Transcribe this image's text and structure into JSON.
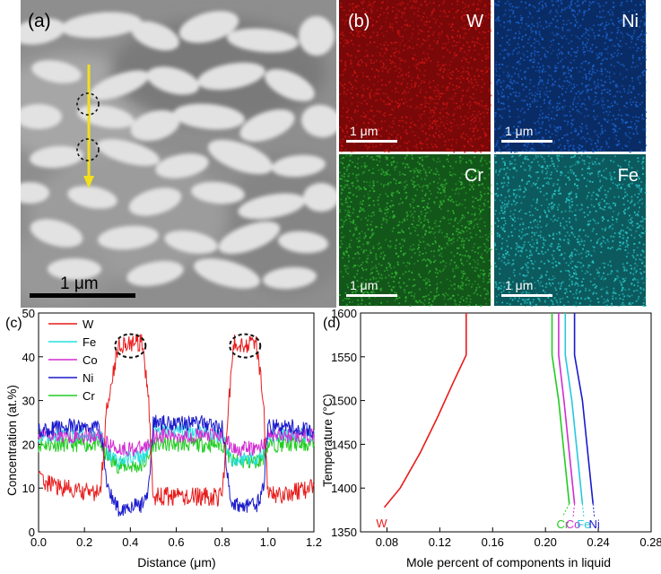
{
  "panel_a": {
    "label": "(a)",
    "scale_bar": "1 μm"
  },
  "panel_b": {
    "label": "(b)",
    "maps": [
      {
        "element": "W",
        "color": "#c81414",
        "bg": "#7a0808",
        "scale": "1 μm"
      },
      {
        "element": "Ni",
        "color": "#1a64d2",
        "bg": "#0a2c66",
        "scale": "1 μm"
      },
      {
        "element": "Cr",
        "color": "#32b432",
        "bg": "#13561a",
        "scale": "1 μm"
      },
      {
        "element": "Fe",
        "color": "#28c8c8",
        "bg": "#0c5a5e",
        "scale": "1 μm"
      }
    ]
  },
  "panel_c": {
    "label": "(c)",
    "xlabel": "Distance (μm)",
    "ylabel": "Concentration (at.%)",
    "xlim": [
      0,
      1.2
    ],
    "ylim": [
      0,
      50
    ],
    "xticks": [
      "0.0",
      "0.2",
      "0.4",
      "0.6",
      "0.8",
      "1.0",
      "1.2"
    ],
    "yticks": [
      "0",
      "10",
      "20",
      "30",
      "40",
      "50"
    ],
    "legend": [
      {
        "name": "W",
        "color": "#e81c1c"
      },
      {
        "name": "Fe",
        "color": "#26e0e0"
      },
      {
        "name": "Co",
        "color": "#d22cd2"
      },
      {
        "name": "Ni",
        "color": "#1a1acc"
      },
      {
        "name": "Cr",
        "color": "#22cc22"
      }
    ]
  },
  "panel_d": {
    "label": "(d)",
    "xlabel": "Mole percent of components in liquid",
    "ylabel": "Temperature (°C)",
    "xlim": [
      0.06,
      0.28
    ],
    "ylim": [
      1350,
      1600
    ],
    "xticks": [
      "0.08",
      "0.12",
      "0.16",
      "0.20",
      "0.24",
      "0.28"
    ],
    "yticks": [
      "1350",
      "1400",
      "1450",
      "1500",
      "1550",
      "1600"
    ],
    "end_labels": [
      {
        "name": "W",
        "color": "#e81c1c"
      },
      {
        "name": "Cr",
        "color": "#22cc22"
      },
      {
        "name": "Co",
        "color": "#d22cd2"
      },
      {
        "name": "Fe",
        "color": "#26c8e0"
      },
      {
        "name": "Ni",
        "color": "#1a1acc"
      }
    ]
  },
  "chart_data": [
    {
      "type": "line",
      "panel": "(c)",
      "xlabel": "Distance (μm)",
      "ylabel": "Concentration (at.%)",
      "xlim": [
        0,
        1.2
      ],
      "ylim": [
        0,
        50
      ],
      "x": [
        0.0,
        0.1,
        0.2,
        0.27,
        0.3,
        0.35,
        0.4,
        0.45,
        0.48,
        0.5,
        0.6,
        0.7,
        0.8,
        0.83,
        0.85,
        0.9,
        0.95,
        0.98,
        1.0,
        1.1,
        1.2
      ],
      "series": [
        {
          "name": "W",
          "values": [
            12,
            10,
            9,
            9,
            30,
            43,
            43,
            43,
            30,
            8,
            8,
            8,
            8,
            30,
            43,
            43,
            43,
            30,
            8,
            9,
            10
          ]
        },
        {
          "name": "Fe",
          "values": [
            22,
            22,
            22,
            22,
            18,
            16,
            17,
            17,
            18,
            23,
            23,
            23,
            22,
            18,
            16,
            17,
            17,
            18,
            22,
            22,
            22
          ]
        },
        {
          "name": "Co",
          "values": [
            22,
            22,
            22,
            22,
            20,
            19,
            19,
            19,
            20,
            22,
            22,
            22,
            22,
            20,
            19,
            19,
            19,
            20,
            22,
            22,
            22
          ]
        },
        {
          "name": "Ni",
          "values": [
            23,
            24,
            24,
            24,
            10,
            5,
            6,
            6,
            10,
            25,
            25,
            25,
            24,
            10,
            6,
            6,
            6,
            10,
            24,
            24,
            23
          ]
        },
        {
          "name": "Cr",
          "values": [
            20,
            20,
            20,
            20,
            17,
            15,
            15,
            15,
            17,
            20,
            20,
            20,
            20,
            17,
            16,
            16,
            16,
            17,
            20,
            20,
            20
          ]
        }
      ]
    },
    {
      "type": "line",
      "panel": "(d)",
      "xlabel": "Mole percent of components in liquid",
      "ylabel": "Temperature (°C)",
      "xlim": [
        0.06,
        0.28
      ],
      "ylim": [
        1350,
        1600
      ],
      "series": [
        {
          "name": "W",
          "points": [
            [
              0.078,
              1378
            ],
            [
              0.09,
              1400
            ],
            [
              0.105,
              1440
            ],
            [
              0.118,
              1480
            ],
            [
              0.13,
              1520
            ],
            [
              0.14,
              1552
            ],
            [
              0.14,
              1600
            ]
          ]
        },
        {
          "name": "Cr",
          "points": [
            [
              0.218,
              1382
            ],
            [
              0.21,
              1500
            ],
            [
              0.205,
              1552
            ],
            [
              0.205,
              1600
            ]
          ]
        },
        {
          "name": "Co",
          "points": [
            [
              0.222,
              1382
            ],
            [
              0.214,
              1500
            ],
            [
              0.21,
              1552
            ],
            [
              0.21,
              1600
            ]
          ]
        },
        {
          "name": "Fe",
          "points": [
            [
              0.228,
              1382
            ],
            [
              0.22,
              1500
            ],
            [
              0.215,
              1552
            ],
            [
              0.215,
              1600
            ]
          ]
        },
        {
          "name": "Ni",
          "points": [
            [
              0.236,
              1382
            ],
            [
              0.228,
              1500
            ],
            [
              0.222,
              1552
            ],
            [
              0.222,
              1600
            ]
          ]
        }
      ]
    }
  ]
}
